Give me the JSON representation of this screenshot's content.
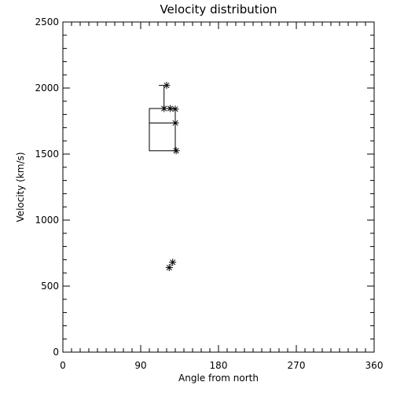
{
  "chart_data": {
    "type": "scatter",
    "title": "Velocity distribution",
    "xlabel": "Angle from north",
    "ylabel": "Velocity (km/s)",
    "xlim": [
      0,
      360
    ],
    "ylim": [
      0,
      2500
    ],
    "x_ticks": [
      0,
      90,
      180,
      270,
      360
    ],
    "y_ticks": [
      0,
      500,
      1000,
      1500,
      2000,
      2500
    ],
    "x_minor_step": 10,
    "y_minor_step": 100,
    "grid": false,
    "points": [
      {
        "x": 120,
        "y": 2020
      },
      {
        "x": 117,
        "y": 1845
      },
      {
        "x": 124,
        "y": 1845
      },
      {
        "x": 130,
        "y": 1840
      },
      {
        "x": 130,
        "y": 1735
      },
      {
        "x": 131,
        "y": 1525
      },
      {
        "x": 127,
        "y": 680
      },
      {
        "x": 123,
        "y": 640
      }
    ],
    "box": {
      "x_left": 100,
      "x_right": 130,
      "q1": 1525,
      "median": 1735,
      "q3": 1845,
      "whisker_top": 2020,
      "whisker_x": 117,
      "whisker_cap_left": 111
    }
  }
}
